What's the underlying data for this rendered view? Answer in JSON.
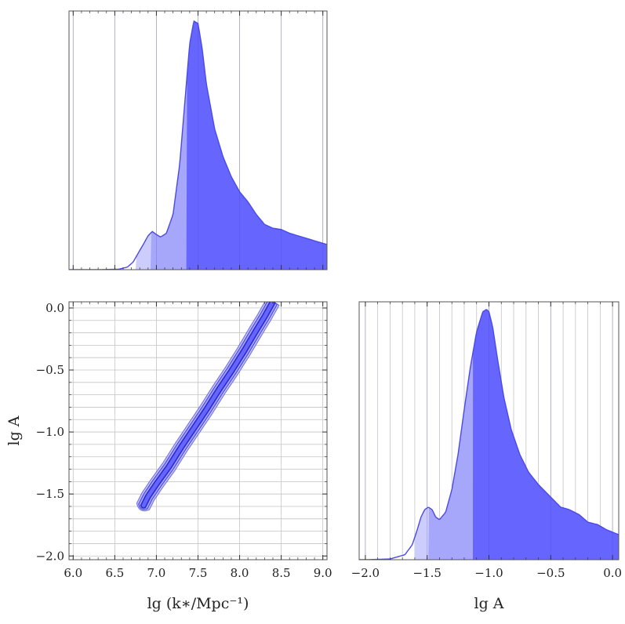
{
  "colors": {
    "band_1sigma": "#6666ff",
    "band_2sigma": "#a3a3fb",
    "band_3sigma": "#cacafd",
    "outline": "#4a4ae6",
    "contour_inner": "#2a2ad0",
    "background": "#ffffff"
  },
  "chart_data": [
    {
      "id": "marginal_lgk",
      "type": "area",
      "xlim": [
        5.95,
        9.05
      ],
      "xticks": [
        6.0,
        6.5,
        7.0,
        7.5,
        8.0,
        8.5,
        9.0
      ],
      "show_tick_labels": false,
      "yaxis_ticks": false,
      "grid": true,
      "x": [
        6.0,
        6.3,
        6.55,
        6.65,
        6.72,
        6.78,
        6.85,
        6.9,
        6.95,
        7.0,
        7.05,
        7.12,
        7.2,
        7.28,
        7.35,
        7.4,
        7.45,
        7.5,
        7.55,
        7.6,
        7.7,
        7.8,
        7.9,
        8.0,
        8.1,
        8.2,
        8.3,
        8.4,
        8.5,
        8.6,
        8.7,
        8.8,
        8.9,
        9.0,
        9.05
      ],
      "y": [
        0,
        0,
        0.002,
        0.01,
        0.03,
        0.065,
        0.105,
        0.135,
        0.152,
        0.14,
        0.13,
        0.145,
        0.22,
        0.42,
        0.7,
        0.9,
        0.99,
        0.98,
        0.88,
        0.74,
        0.56,
        0.45,
        0.37,
        0.31,
        0.27,
        0.22,
        0.18,
        0.165,
        0.16,
        0.145,
        0.135,
        0.125,
        0.115,
        0.105,
        0.1
      ],
      "band_edges": {
        "outer_low": 6.75,
        "mid_low": 6.93,
        "inner_low": 7.36
      }
    },
    {
      "id": "joint_lgk_lgA",
      "type": "scatter",
      "xlim": [
        5.95,
        9.05
      ],
      "ylim": [
        -2.03,
        0.05
      ],
      "xticks": [
        6.0,
        6.5,
        7.0,
        7.5,
        8.0,
        8.5,
        9.0
      ],
      "xtick_labels": [
        "6.0",
        "6.5",
        "7.0",
        "7.5",
        "8.0",
        "8.5",
        "9.0"
      ],
      "yticks": [
        0.0,
        -0.5,
        -1.0,
        -1.5,
        -2.0
      ],
      "ytick_labels": [
        "0.0",
        "−0.5",
        "−1.0",
        "−1.5",
        "−2.0"
      ],
      "ygrid_step": 0.1,
      "grid": true,
      "xlabel": "lg (k∗/Mpc⁻¹)",
      "ylabel": "lg A",
      "ridge": {
        "x": [
          6.84,
          6.9,
          7.0,
          7.15,
          7.3,
          7.45,
          7.6,
          7.75,
          7.9,
          8.05,
          8.2,
          8.3,
          8.4
        ],
        "y": [
          -1.6,
          -1.52,
          -1.42,
          -1.28,
          -1.12,
          -0.97,
          -0.82,
          -0.66,
          -0.51,
          -0.35,
          -0.18,
          -0.07,
          0.05
        ]
      },
      "half_width_3sigma": 0.085,
      "half_width_2sigma": 0.06,
      "half_width_1sigma": 0.03
    },
    {
      "id": "marginal_lgA",
      "type": "area",
      "xlim": [
        -2.05,
        0.05
      ],
      "xticks": [
        -2.0,
        -1.5,
        -1.0,
        -0.5,
        0.0
      ],
      "xtick_labels": [
        "−2.0",
        "−1.5",
        "−1.0",
        "−0.5",
        "0.0"
      ],
      "xgrid_step": 0.1,
      "yaxis_ticks": false,
      "grid": true,
      "xlabel": "lg A",
      "x": [
        -2.0,
        -1.8,
        -1.68,
        -1.62,
        -1.58,
        -1.55,
        -1.52,
        -1.49,
        -1.46,
        -1.43,
        -1.4,
        -1.35,
        -1.3,
        -1.25,
        -1.2,
        -1.15,
        -1.1,
        -1.05,
        -1.02,
        -1.0,
        -0.97,
        -0.93,
        -0.88,
        -0.82,
        -0.75,
        -0.68,
        -0.6,
        -0.5,
        -0.42,
        -0.35,
        -0.27,
        -0.2,
        -0.12,
        -0.05,
        0.0,
        0.05
      ],
      "y": [
        0,
        0.003,
        0.02,
        0.06,
        0.12,
        0.17,
        0.2,
        0.21,
        0.2,
        0.17,
        0.16,
        0.19,
        0.28,
        0.42,
        0.6,
        0.77,
        0.91,
        0.99,
        1.0,
        0.99,
        0.93,
        0.8,
        0.65,
        0.52,
        0.42,
        0.35,
        0.3,
        0.25,
        0.21,
        0.2,
        0.18,
        0.15,
        0.14,
        0.12,
        0.11,
        0.1
      ],
      "band_edges": {
        "outer_low": -1.6,
        "mid_low": -1.49,
        "inner_low": -1.13
      }
    }
  ]
}
